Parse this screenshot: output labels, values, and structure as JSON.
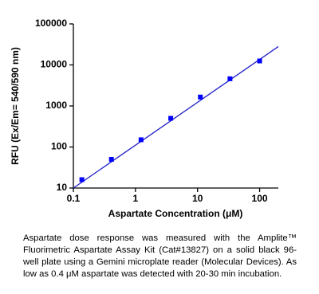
{
  "chart_data": {
    "type": "scatter",
    "x_log": true,
    "y_log": true,
    "x_label": "Aspartate Concentration (μM)",
    "y_label": "RFU (Ex/Em= 540/590 nm)",
    "xlim": [
      0.1,
      200
    ],
    "ylim": [
      10,
      100000
    ],
    "xticks": [
      0.1,
      1,
      10,
      100
    ],
    "yticks": [
      10,
      100,
      1000,
      10000,
      100000
    ],
    "series": [
      {
        "color": "#0000ff",
        "x": [
          0.137,
          0.41,
          1.23,
          3.7,
          11.1,
          33.3,
          100
        ],
        "values": [
          16,
          50,
          150,
          500,
          1650,
          4600,
          12500
        ]
      }
    ],
    "fit": {
      "color": "#2020c8",
      "x": [
        0.1,
        200
      ],
      "y": [
        10,
        28000
      ]
    }
  },
  "caption": "Aspartate dose response was measured with the Amplite™ Fluorimetric Aspartate Assay Kit (Cat#13827) on a solid black 96-well plate using a Gemini microplate reader (Molecular Devices). As low as 0.4 μM aspartate was detected with 20-30 min incubation."
}
